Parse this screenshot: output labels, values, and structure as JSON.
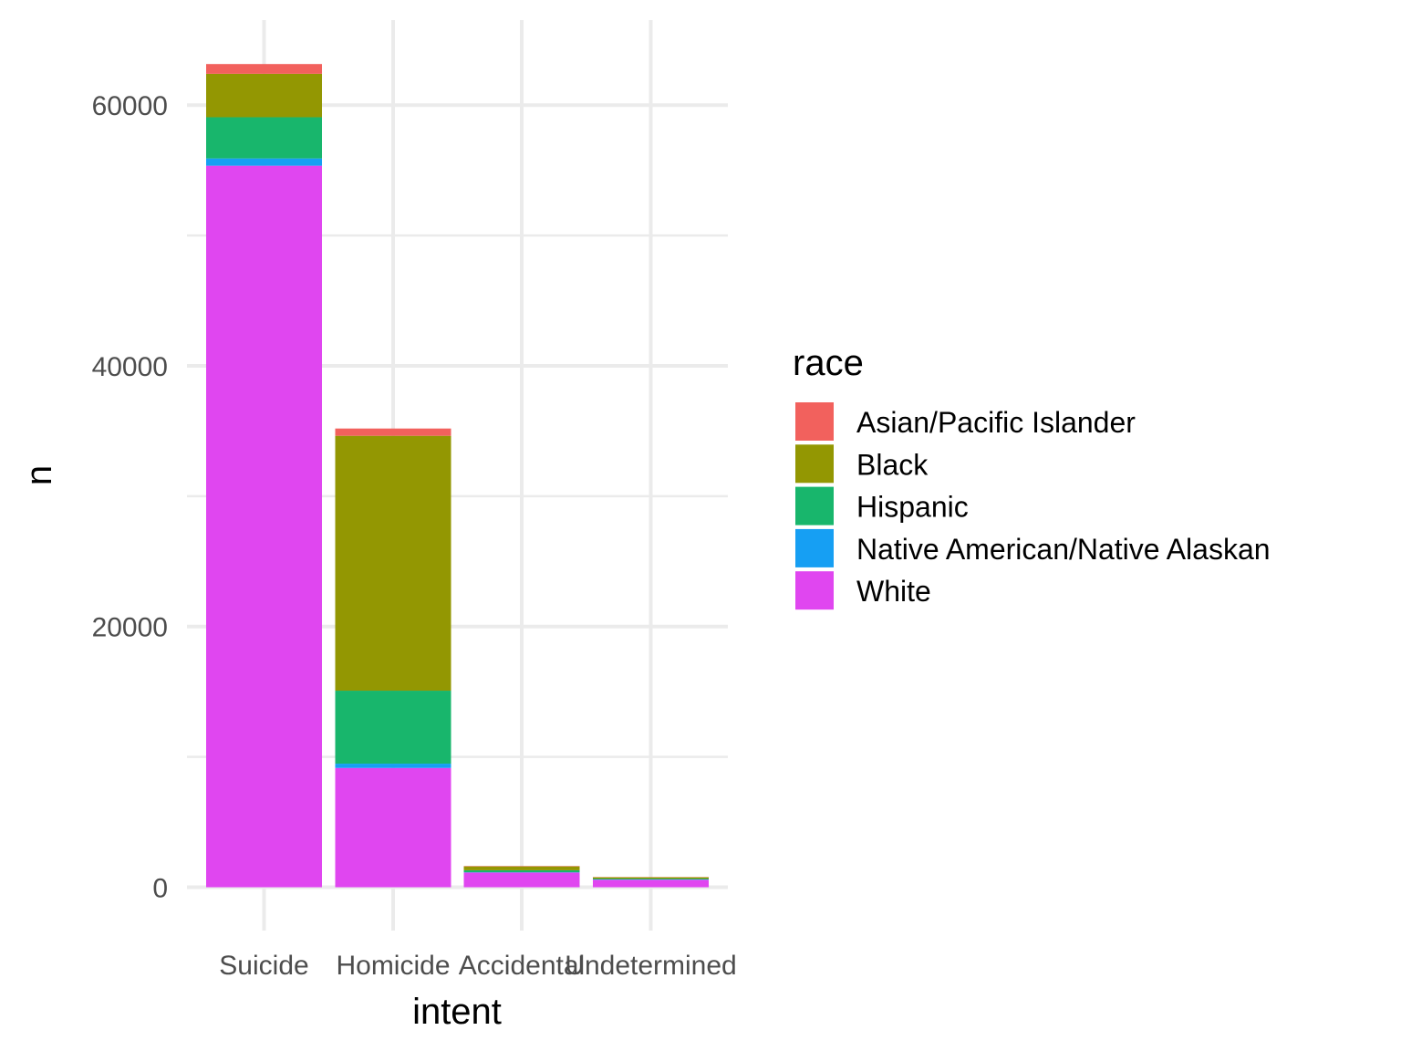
{
  "chart_data": {
    "type": "bar",
    "stacked": true,
    "categories": [
      "Suicide",
      "Homicide",
      "Accidental",
      "Undetermined"
    ],
    "xlabel": "intent",
    "ylabel": "n",
    "ylim": [
      0,
      65000
    ],
    "yticks": [
      0,
      20000,
      40000,
      60000
    ],
    "grid": true,
    "legend": {
      "title": "race",
      "position": "right"
    },
    "series": [
      {
        "name": "White",
        "color": "#E046F0",
        "values": [
          55350,
          9150,
          1130,
          580
        ]
      },
      {
        "name": "Native American/Native Alaskan",
        "color": "#169FF3",
        "values": [
          560,
          330,
          20,
          15
        ]
      },
      {
        "name": "Hispanic",
        "color": "#18B66C",
        "values": [
          3160,
          5600,
          150,
          70
        ]
      },
      {
        "name": "Black",
        "color": "#939702",
        "values": [
          3330,
          19550,
          300,
          100
        ]
      },
      {
        "name": "Asian/Pacific Islander",
        "color": "#F2615D",
        "values": [
          750,
          560,
          30,
          15
        ]
      }
    ],
    "legend_order": [
      "Asian/Pacific Islander",
      "Black",
      "Hispanic",
      "Native American/Native Alaskan",
      "White"
    ]
  }
}
